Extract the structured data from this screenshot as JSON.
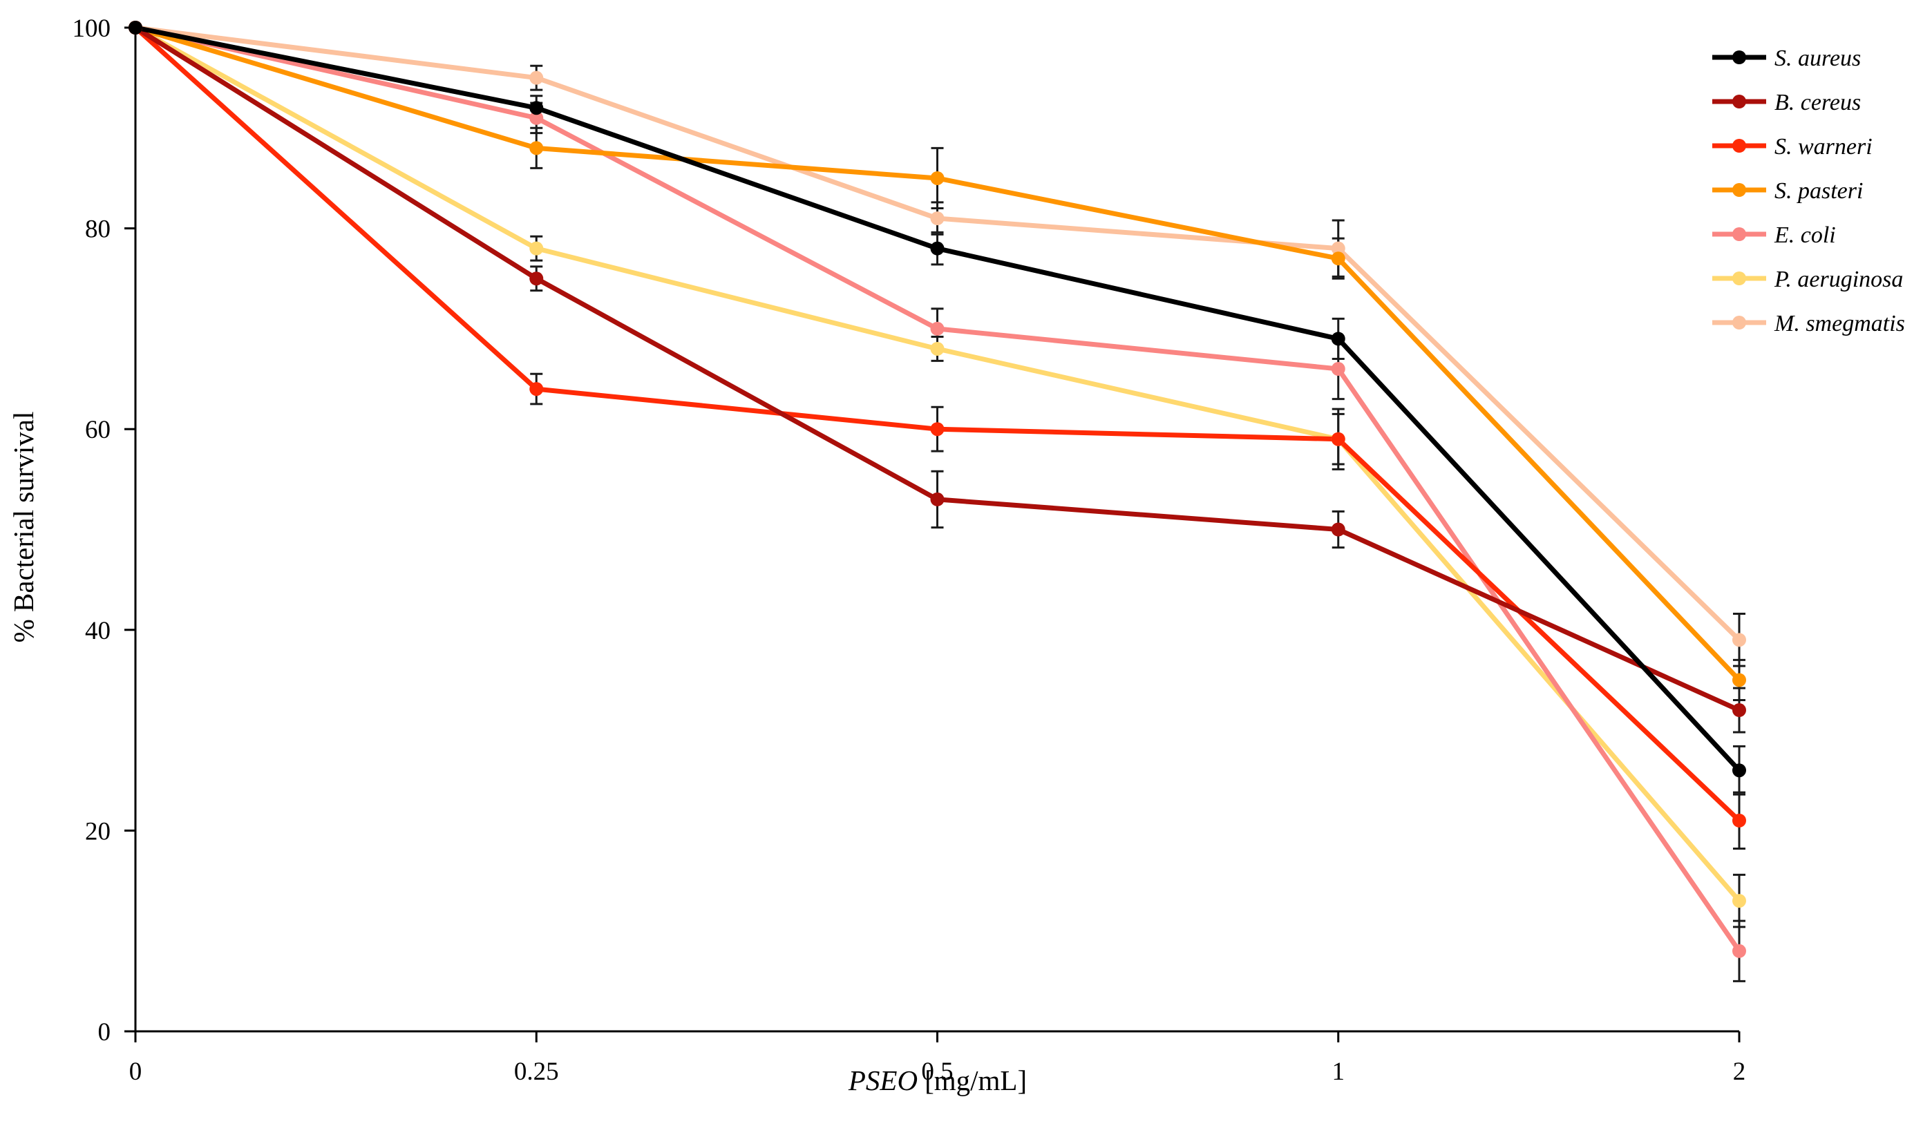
{
  "chart_data": {
    "type": "line",
    "title": "",
    "xlabel_italic": "PSEO",
    "xlabel_units": "[mg/mL]",
    "ylabel": "% Bacterial survival",
    "categories": [
      "0",
      "0.25",
      "0.5",
      "1",
      "2"
    ],
    "ylim": [
      0,
      100
    ],
    "yticks": [
      "0",
      "20",
      "40",
      "60",
      "80",
      "100"
    ],
    "legend_position": "top-right",
    "series": [
      {
        "name": "S. aureus",
        "color": "#000000",
        "values": [
          100,
          92,
          78,
          69,
          26
        ],
        "errors": [
          0,
          1.2,
          1.6,
          2.0,
          2.4
        ]
      },
      {
        "name": "B. cereus",
        "color": "#aa0f0a",
        "values": [
          100,
          75,
          53,
          50,
          32
        ],
        "errors": [
          0,
          1.2,
          2.8,
          1.8,
          2.2
        ]
      },
      {
        "name": "S. warneri",
        "color": "#ff2a05",
        "values": [
          100,
          64,
          60,
          59,
          21
        ],
        "errors": [
          0,
          1.5,
          2.2,
          3.0,
          2.8
        ]
      },
      {
        "name": "S. pasteri",
        "color": "#ff9400",
        "values": [
          100,
          88,
          85,
          77,
          35
        ],
        "errors": [
          0,
          2.0,
          3.0,
          2.0,
          2.0
        ]
      },
      {
        "name": "E. coli",
        "color": "#fa8582",
        "values": [
          100,
          91,
          70,
          66,
          8
        ],
        "errors": [
          0,
          1.5,
          2.0,
          3.0,
          3.0
        ]
      },
      {
        "name": "P. aeruginosa",
        "color": "#ffd86e",
        "values": [
          100,
          78,
          68,
          59,
          13
        ],
        "errors": [
          0,
          1.2,
          1.2,
          2.5,
          2.6
        ]
      },
      {
        "name": "M. smegmatis",
        "color": "#fcc19d",
        "values": [
          100,
          95,
          81,
          78,
          39
        ],
        "errors": [
          0,
          1.2,
          1.6,
          2.8,
          2.6
        ]
      }
    ]
  }
}
